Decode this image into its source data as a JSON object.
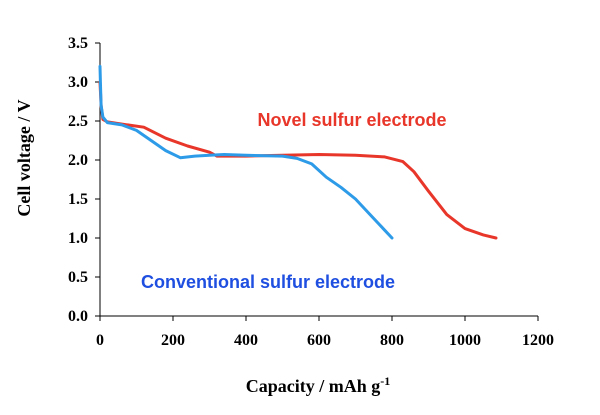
{
  "chart_data": {
    "type": "line",
    "xlabel": "Capacity / mAh g",
    "xlabel_superscript": "-1",
    "ylabel": "Cell voltage / V",
    "xlim": [
      0,
      1200
    ],
    "ylim": [
      0.0,
      3.5
    ],
    "xticks": [
      0,
      200,
      400,
      600,
      800,
      1000,
      1200
    ],
    "yticks": [
      0.0,
      0.5,
      1.0,
      1.5,
      2.0,
      2.5,
      3.0,
      3.5
    ],
    "xtick_labels": [
      "0",
      "200",
      "400",
      "600",
      "800",
      "1000",
      "1200"
    ],
    "ytick_labels": [
      "0.0",
      "0.5",
      "1.0",
      "1.5",
      "2.0",
      "2.5",
      "3.0",
      "3.5"
    ],
    "grid": false,
    "series": [
      {
        "name": "Novel sulfur electrode",
        "color": "#e8372a",
        "x": [
          0,
          3,
          8,
          20,
          60,
          120,
          180,
          240,
          300,
          320,
          400,
          500,
          600,
          700,
          780,
          830,
          860,
          900,
          950,
          1000,
          1050,
          1085
        ],
        "y": [
          3.0,
          2.7,
          2.52,
          2.49,
          2.46,
          2.42,
          2.28,
          2.18,
          2.1,
          2.05,
          2.05,
          2.06,
          2.07,
          2.06,
          2.04,
          1.98,
          1.85,
          1.6,
          1.3,
          1.12,
          1.04,
          1.0
        ]
      },
      {
        "name": "Conventional sulfur electrode",
        "color": "#2d9be8",
        "x": [
          0,
          1,
          3,
          8,
          20,
          60,
          100,
          140,
          180,
          220,
          260,
          300,
          340,
          400,
          500,
          540,
          580,
          620,
          660,
          700,
          740,
          800
        ],
        "y": [
          3.2,
          3.0,
          2.7,
          2.55,
          2.48,
          2.45,
          2.38,
          2.25,
          2.12,
          2.03,
          2.05,
          2.06,
          2.07,
          2.06,
          2.05,
          2.02,
          1.95,
          1.78,
          1.65,
          1.5,
          1.3,
          1.0
        ]
      }
    ],
    "annotations": [
      {
        "text": "Novel sulfur electrode",
        "color": "#e8372a"
      },
      {
        "text": "Conventional sulfur electrode",
        "color": "#1f4fe0"
      }
    ]
  }
}
